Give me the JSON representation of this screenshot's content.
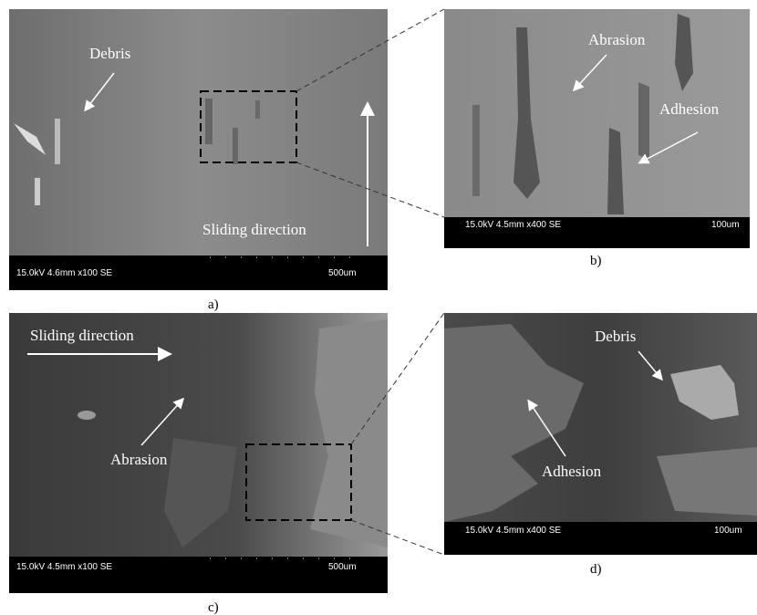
{
  "panels": [
    {
      "caption": "a)",
      "annotations": [
        "Debris",
        "Sliding direction"
      ],
      "info": "15.0kV 4.6mm x100 SE",
      "scale": "500um"
    },
    {
      "caption": "b)",
      "annotations": [
        "Abrasion",
        "Adhesion"
      ],
      "info": "15.0kV 4.5mm x400 SE",
      "scale": "100um"
    },
    {
      "caption": "c)",
      "annotations": [
        "Sliding direction",
        "Abrasion"
      ],
      "info": "15.0kV 4.5mm x100 SE",
      "scale": "500um"
    },
    {
      "caption": "d)",
      "annotations": [
        "Debris",
        "Adhesion"
      ],
      "info": "15.0kV 4.5mm x400 SE",
      "scale": "100um"
    }
  ]
}
